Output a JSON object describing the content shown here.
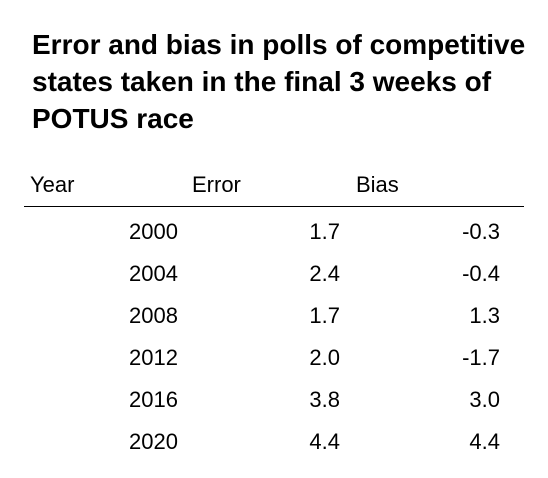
{
  "chart_data": {
    "type": "table",
    "title": "Error and bias in polls of competitive states taken in the final 3 weeks of POTUS race",
    "columns": [
      "Year",
      "Error",
      "Bias"
    ],
    "rows": [
      {
        "year": "2000",
        "error": "1.7",
        "bias": "-0.3"
      },
      {
        "year": "2004",
        "error": "2.4",
        "bias": "-0.4"
      },
      {
        "year": "2008",
        "error": "1.7",
        "bias": "1.3"
      },
      {
        "year": "2012",
        "error": "2.0",
        "bias": "-1.7"
      },
      {
        "year": "2016",
        "error": "3.8",
        "bias": "3.0"
      },
      {
        "year": "2020",
        "error": "4.4",
        "bias": "4.4"
      }
    ]
  }
}
